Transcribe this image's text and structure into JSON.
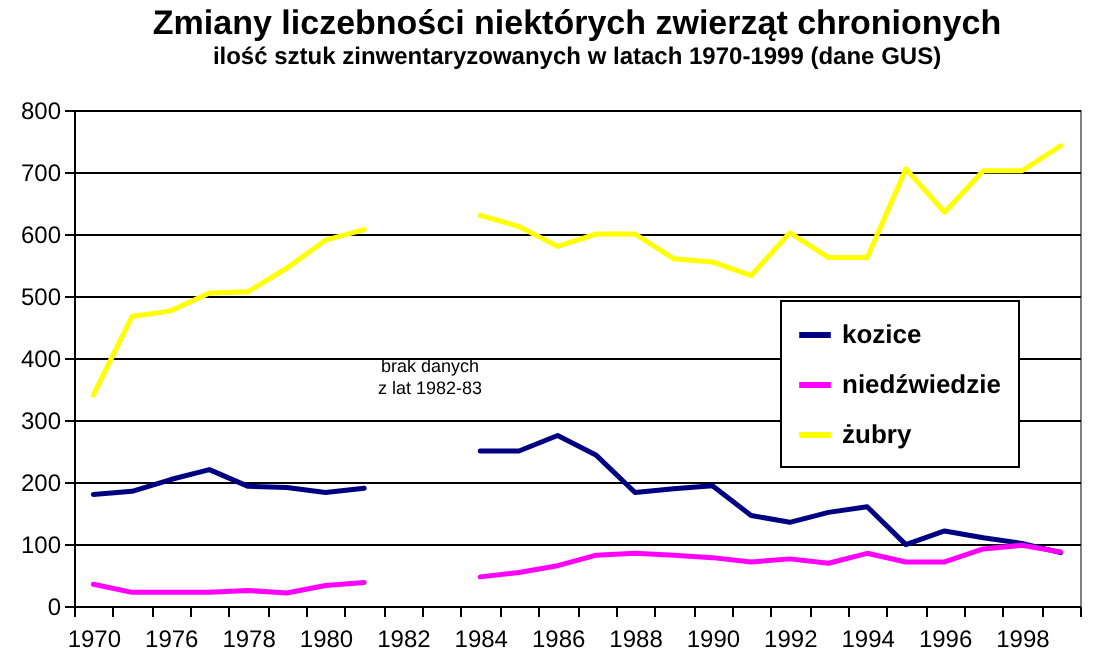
{
  "chart_data": {
    "type": "line",
    "title": "Zmiany liczebności niektórych zwierząt chronionych",
    "subtitle": "ilość sztuk zinwentaryzowanych w latach 1970-1999 (dane GUS)",
    "categories": [
      "1970",
      null,
      "1976",
      null,
      "1978",
      null,
      "1980",
      null,
      "1982",
      null,
      "1984",
      null,
      "1986",
      null,
      "1988",
      null,
      "1990",
      null,
      "1992",
      null,
      "1994",
      null,
      "1996",
      null,
      "1998",
      null
    ],
    "series": [
      {
        "name": "kozice",
        "color": "#000080",
        "values": [
          180,
          185,
          204,
          220,
          193,
          191,
          183,
          190,
          null,
          null,
          250,
          250,
          275,
          243,
          183,
          189,
          194,
          146,
          135,
          151,
          160,
          99,
          121,
          110,
          101,
          86
        ]
      },
      {
        "name": "niedźwiedzie",
        "color": "#ff00ff",
        "values": [
          35,
          22,
          22,
          22,
          25,
          21,
          33,
          38,
          null,
          null,
          47,
          54,
          65,
          82,
          85,
          82,
          78,
          71,
          76,
          69,
          85,
          71,
          71,
          92,
          98,
          87
        ]
      },
      {
        "name": "żubry",
        "color": "#ffff00",
        "values": [
          340,
          467,
          476,
          505,
          507,
          545,
          590,
          607,
          null,
          null,
          630,
          612,
          580,
          600,
          600,
          560,
          555,
          533,
          602,
          562,
          562,
          705,
          635,
          702,
          702,
          742
        ]
      }
    ],
    "ylim": [
      0,
      800
    ],
    "yticks": [
      0,
      100,
      200,
      300,
      400,
      500,
      600,
      700,
      800
    ],
    "grid": "y",
    "legend": "right",
    "annotations": [
      "brak danych\nz lat 1982-83"
    ]
  }
}
